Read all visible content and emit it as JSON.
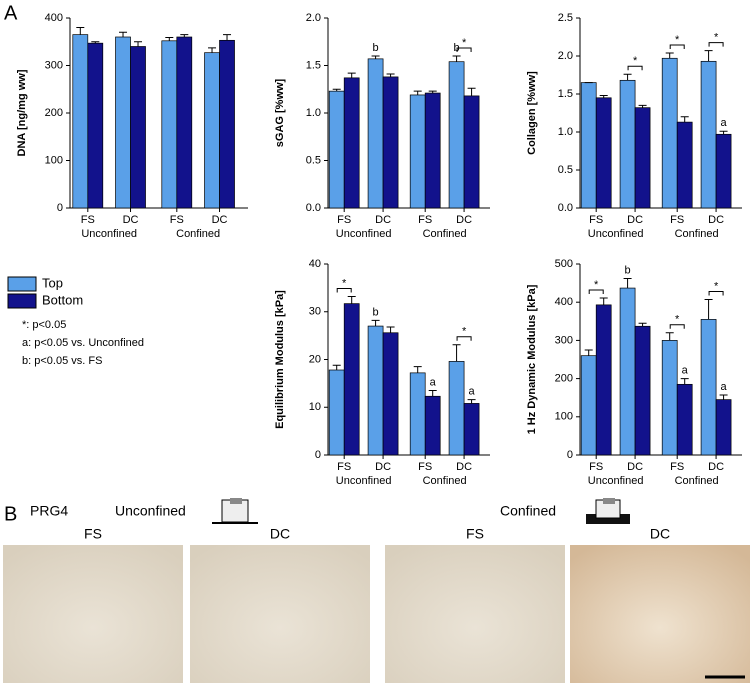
{
  "panels": {
    "a": "A",
    "b": "B"
  },
  "legend": {
    "items": [
      {
        "name": "Top",
        "color": "#5aa0e8"
      },
      {
        "name": "Bottom",
        "color": "#12128c"
      }
    ],
    "notes": [
      "*: p<0.05",
      "a: p<0.05 vs. Unconfined",
      "b: p<0.05 vs. FS"
    ]
  },
  "chart_data": [
    {
      "type": "bar",
      "ylabel": "DNA [ng/mg ww]",
      "categories": [
        "FS",
        "DC",
        "FS",
        "DC"
      ],
      "groups": [
        "Unconfined",
        "Confined"
      ],
      "ylim": [
        0,
        400
      ],
      "yticks": [
        0,
        100,
        200,
        300,
        400
      ],
      "series": [
        {
          "values": [
            365,
            360,
            352,
            327
          ],
          "errors": [
            15,
            10,
            7,
            10
          ]
        },
        {
          "values": [
            347,
            340,
            360,
            353
          ],
          "errors": [
            3,
            10,
            5,
            12
          ]
        }
      ]
    },
    {
      "type": "bar",
      "ylabel": "sGAG [%ww]",
      "categories": [
        "FS",
        "DC",
        "FS",
        "DC"
      ],
      "groups": [
        "Unconfined",
        "Confined"
      ],
      "ylim": [
        0,
        2
      ],
      "yticks": [
        {
          "value": 0,
          "label": "0.0"
        },
        0.5,
        {
          "value": 1,
          "label": "1.0"
        },
        1.5,
        {
          "value": 2,
          "label": "2.0"
        }
      ],
      "significance": [
        null,
        null,
        null,
        "*"
      ],
      "series": [
        {
          "values": [
            1.23,
            1.57,
            1.19,
            1.54
          ],
          "errors": [
            0.02,
            0.03,
            0.04,
            0.06
          ],
          "labels": [
            null,
            "b",
            null,
            "b"
          ]
        },
        {
          "values": [
            1.37,
            1.38,
            1.21,
            1.18
          ],
          "errors": [
            0.05,
            0.03,
            0.02,
            0.08
          ]
        }
      ]
    },
    {
      "type": "bar",
      "ylabel": "Collagen [%ww]",
      "categories": [
        "FS",
        "DC",
        "FS",
        "DC"
      ],
      "groups": [
        "Unconfined",
        "Confined"
      ],
      "ylim": [
        0,
        2.5
      ],
      "yticks": [
        {
          "value": 0,
          "label": "0.0"
        },
        0.5,
        {
          "value": 1,
          "label": "1.0"
        },
        1.5,
        {
          "value": 2,
          "label": "2.0"
        },
        2.5
      ],
      "significance": [
        null,
        "*",
        "*",
        "*"
      ],
      "series": [
        {
          "values": [
            1.65,
            1.68,
            1.97,
            1.93
          ],
          "errors": [
            0,
            0.08,
            0.07,
            0.14
          ]
        },
        {
          "values": [
            1.45,
            1.32,
            1.13,
            0.97
          ],
          "errors": [
            0.03,
            0.03,
            0.07,
            0.04
          ],
          "labels": [
            null,
            null,
            null,
            "a"
          ]
        }
      ]
    },
    {
      "type": "bar",
      "ylabel": "Equilibrium Modulus [kPa]",
      "categories": [
        "FS",
        "DC",
        "FS",
        "DC"
      ],
      "groups": [
        "Unconfined",
        "Confined"
      ],
      "ylim": [
        0,
        40
      ],
      "yticks": [
        0,
        10,
        20,
        30,
        40
      ],
      "significance": [
        "*",
        null,
        null,
        "*"
      ],
      "series": [
        {
          "values": [
            17.8,
            27,
            17.2,
            19.6
          ],
          "errors": [
            1,
            1.2,
            1.3,
            3.5
          ],
          "labels": [
            null,
            "b",
            null,
            null
          ]
        },
        {
          "values": [
            31.7,
            25.6,
            12.3,
            10.8
          ],
          "errors": [
            1.5,
            1.2,
            1.2,
            0.8
          ],
          "labels": [
            null,
            null,
            "a",
            "a"
          ]
        }
      ]
    },
    {
      "type": "bar",
      "ylabel": "1 Hz Dynamic Modulus [kPa]",
      "categories": [
        "FS",
        "DC",
        "FS",
        "DC"
      ],
      "groups": [
        "Unconfined",
        "Confined"
      ],
      "ylim": [
        0,
        500
      ],
      "yticks": [
        0,
        100,
        200,
        300,
        400,
        500
      ],
      "significance": [
        "*",
        null,
        "*",
        "*"
      ],
      "series": [
        {
          "values": [
            260,
            437,
            300,
            355
          ],
          "errors": [
            15,
            25,
            20,
            52
          ],
          "labels": [
            null,
            "b",
            null,
            null
          ]
        },
        {
          "values": [
            393,
            337,
            185,
            145
          ],
          "errors": [
            18,
            8,
            15,
            12
          ],
          "labels": [
            null,
            null,
            "a",
            "a"
          ]
        }
      ]
    }
  ],
  "images": {
    "stain": "PRG4",
    "conditions": [
      "Unconfined",
      "Confined"
    ],
    "labels": [
      "FS",
      "DC",
      "FS",
      "DC"
    ]
  }
}
